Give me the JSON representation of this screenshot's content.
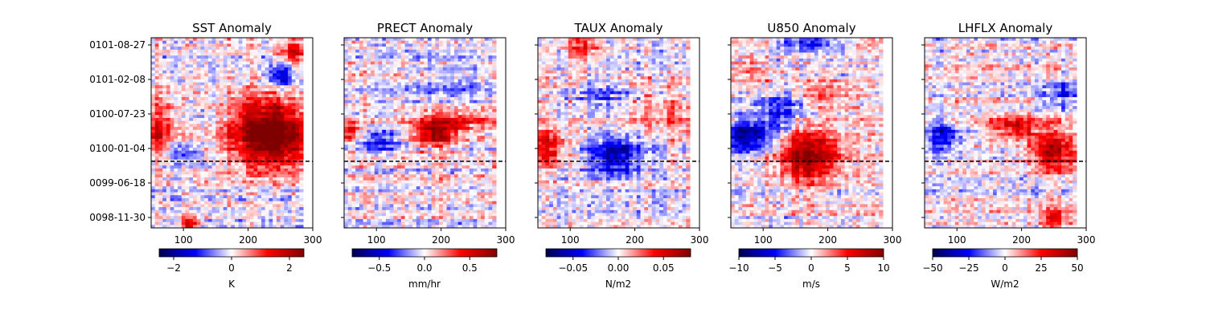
{
  "chart_data": [
    {
      "type": "heatmap",
      "title": "SST Anomaly",
      "x_ticks": [
        100,
        200,
        300
      ],
      "y_ticks": [
        "0101-08-27",
        "0101-02-08",
        "0100-07-23",
        "0100-01-04",
        "0099-06-18",
        "0098-11-30"
      ],
      "colorbar": {
        "label": "K",
        "range": [
          -2.5,
          2.5
        ],
        "ticks": [
          -2,
          0,
          2
        ]
      },
      "dashed_line_date": "0099-10-01",
      "features": [
        {
          "x": 230,
          "t": 0.55,
          "sx": 40,
          "st": 0.1,
          "a": 1.0
        },
        {
          "x": 240,
          "t": 0.42,
          "sx": 45,
          "st": 0.1,
          "a": 0.7
        },
        {
          "x": 60,
          "t": 0.52,
          "sx": 20,
          "st": 0.1,
          "a": 0.6
        },
        {
          "x": 250,
          "t": 0.8,
          "sx": 12,
          "st": 0.04,
          "a": -0.8
        },
        {
          "x": 270,
          "t": 0.92,
          "sx": 12,
          "st": 0.04,
          "a": 0.8
        },
        {
          "x": 110,
          "t": 0.02,
          "sx": 10,
          "st": 0.03,
          "a": 0.8
        },
        {
          "x": 100,
          "t": 0.4,
          "sx": 20,
          "st": 0.04,
          "a": -0.4
        }
      ]
    },
    {
      "type": "heatmap",
      "title": "PRECT Anomaly",
      "x_ticks": [
        100,
        200,
        300
      ],
      "y_ticks": [
        "0101-08-27",
        "0101-02-08",
        "0100-07-23",
        "0100-01-04",
        "0099-06-18",
        "0098-11-30"
      ],
      "colorbar": {
        "label": "mm/hr",
        "range": [
          -0.8,
          0.8
        ],
        "ticks": [
          -0.5,
          0.0,
          0.5
        ]
      },
      "dashed_line_date": "0099-10-01",
      "features": [
        {
          "x": 190,
          "t": 0.5,
          "sx": 25,
          "st": 0.05,
          "a": 0.9
        },
        {
          "x": 60,
          "t": 0.5,
          "sx": 12,
          "st": 0.04,
          "a": 0.7
        },
        {
          "x": 230,
          "t": 0.57,
          "sx": 40,
          "st": 0.05,
          "a": 0.5
        },
        {
          "x": 100,
          "t": 0.45,
          "sx": 30,
          "st": 0.04,
          "a": -0.5
        },
        {
          "x": 220,
          "t": 0.75,
          "sx": 50,
          "st": 0.1,
          "a": -0.2
        }
      ]
    },
    {
      "type": "heatmap",
      "title": "TAUX Anomaly",
      "x_ticks": [
        100,
        200,
        300
      ],
      "y_ticks": [
        "0101-08-27",
        "0101-02-08",
        "0100-07-23",
        "0100-01-04",
        "0099-06-18",
        "0098-11-30"
      ],
      "colorbar": {
        "label": "N/m2",
        "range": [
          -0.08,
          0.08
        ],
        "ticks": [
          -0.05,
          0.0,
          0.05
        ]
      },
      "dashed_line_date": "0099-10-01",
      "features": [
        {
          "x": 170,
          "t": 0.38,
          "sx": 30,
          "st": 0.08,
          "a": -0.8
        },
        {
          "x": 65,
          "t": 0.42,
          "sx": 18,
          "st": 0.06,
          "a": 0.7
        },
        {
          "x": 240,
          "t": 0.6,
          "sx": 40,
          "st": 0.06,
          "a": 0.3
        },
        {
          "x": 150,
          "t": 0.7,
          "sx": 30,
          "st": 0.06,
          "a": -0.4
        },
        {
          "x": 120,
          "t": 0.95,
          "sx": 20,
          "st": 0.05,
          "a": 0.5
        }
      ]
    },
    {
      "type": "heatmap",
      "title": "U850 Anomaly",
      "x_ticks": [
        100,
        200,
        300
      ],
      "y_ticks": [
        "0101-08-27",
        "0101-02-08",
        "0100-07-23",
        "0100-01-04",
        "0099-06-18",
        "0098-11-30"
      ],
      "colorbar": {
        "label": "m/s",
        "range": [
          -10,
          10
        ],
        "ticks": [
          -10,
          -5,
          0,
          5,
          10
        ]
      },
      "dashed_line_date": "0099-10-01",
      "features": [
        {
          "x": 170,
          "t": 0.38,
          "sx": 35,
          "st": 0.1,
          "a": 1.0
        },
        {
          "x": 75,
          "t": 0.48,
          "sx": 28,
          "st": 0.06,
          "a": -0.9
        },
        {
          "x": 130,
          "t": 0.6,
          "sx": 30,
          "st": 0.06,
          "a": -0.5
        },
        {
          "x": 200,
          "t": 0.7,
          "sx": 30,
          "st": 0.05,
          "a": 0.4
        },
        {
          "x": 170,
          "t": 0.97,
          "sx": 30,
          "st": 0.03,
          "a": -0.7
        },
        {
          "x": 80,
          "t": 0.82,
          "sx": 30,
          "st": 0.05,
          "a": 0.3
        }
      ]
    },
    {
      "type": "heatmap",
      "title": "LHFLX Anomaly",
      "x_ticks": [
        100,
        200,
        300
      ],
      "y_ticks": [
        "0101-08-27",
        "0101-02-08",
        "0100-07-23",
        "0100-01-04",
        "0099-06-18",
        "0098-11-30"
      ],
      "colorbar": {
        "label": "W/m2",
        "range": [
          -50,
          50
        ],
        "ticks": [
          -50,
          -25,
          0,
          25,
          50
        ]
      },
      "dashed_line_date": "0099-10-01",
      "features": [
        {
          "x": 250,
          "t": 0.4,
          "sx": 25,
          "st": 0.07,
          "a": 0.9
        },
        {
          "x": 190,
          "t": 0.53,
          "sx": 30,
          "st": 0.04,
          "a": 0.7
        },
        {
          "x": 80,
          "t": 0.48,
          "sx": 20,
          "st": 0.05,
          "a": -0.6
        },
        {
          "x": 260,
          "t": 0.7,
          "sx": 20,
          "st": 0.05,
          "a": -0.5
        },
        {
          "x": 250,
          "t": 0.05,
          "sx": 15,
          "st": 0.04,
          "a": 0.6
        }
      ]
    }
  ]
}
